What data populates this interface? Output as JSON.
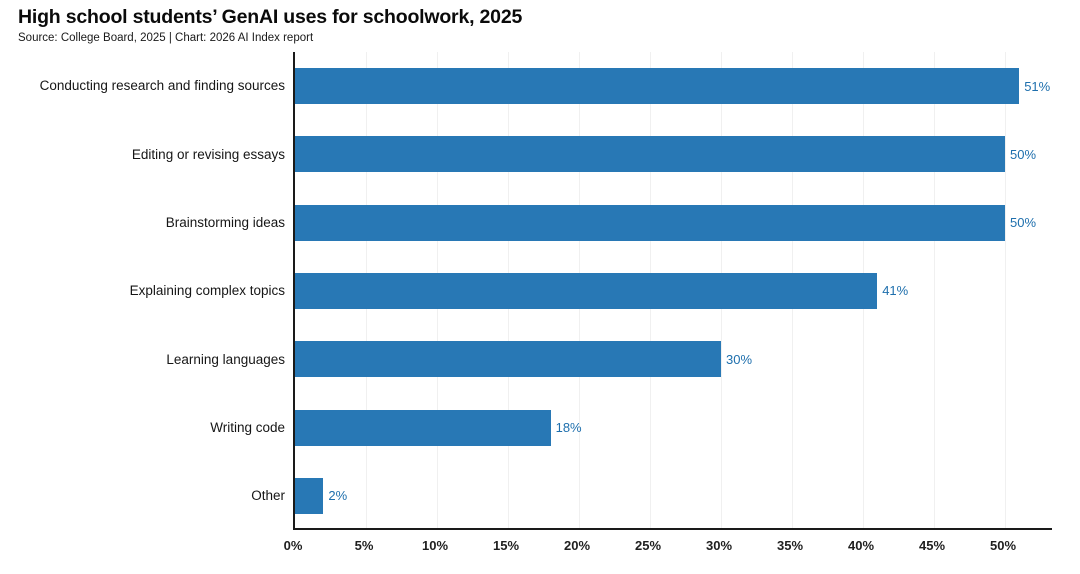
{
  "header": {
    "title": "High school students’ GenAI uses for schoolwork, 2025",
    "source_line": "Source: College Board, 2025 | Chart: 2026 AI Index report"
  },
  "colors": {
    "bar": "#2878b5",
    "value_label": "#1e6fad",
    "axis": "#1a1a1a",
    "gridline": "#f0f0f0",
    "title_text": "#0b0b0b",
    "category_text": "#161616",
    "tick_text": "#1f1f1f"
  },
  "chart_data": {
    "type": "bar",
    "orientation": "horizontal",
    "title": "High school students’ GenAI uses for schoolwork, 2025",
    "subtitle": "Source: College Board, 2025 | Chart: 2026 AI Index report",
    "categories": [
      "Conducting research and finding sources",
      "Editing or revising essays",
      "Brainstorming ideas",
      "Explaining complex topics",
      "Learning languages",
      "Writing code",
      "Other"
    ],
    "values": [
      51,
      50,
      50,
      41,
      30,
      18,
      2
    ],
    "value_labels": [
      "51%",
      "50%",
      "50%",
      "41%",
      "30%",
      "18%",
      "2%"
    ],
    "xlabel": "",
    "ylabel": "",
    "xlim": [
      0,
      53.45
    ],
    "xticks": [
      0,
      5,
      10,
      15,
      20,
      25,
      30,
      35,
      40,
      45,
      50
    ],
    "xtick_labels": [
      "0%",
      "5%",
      "10%",
      "15%",
      "20%",
      "25%",
      "30%",
      "35%",
      "40%",
      "45%",
      "50%"
    ],
    "grid": "vertical-light",
    "legend": false,
    "value_suffix": "%"
  }
}
